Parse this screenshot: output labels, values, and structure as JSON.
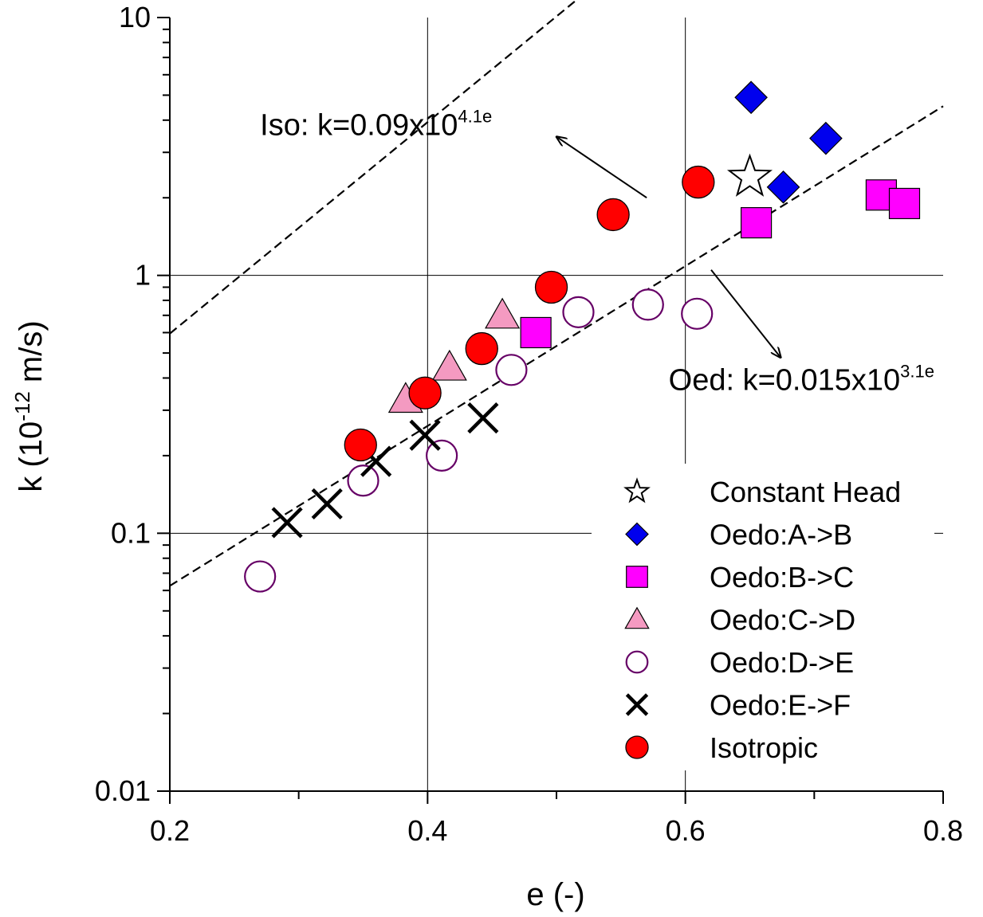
{
  "chart_data": {
    "type": "scatter",
    "title": "",
    "xlabel": "e (-)",
    "ylabel": {
      "base": "k (10",
      "sup": "-12",
      "rest": " m/s)"
    },
    "xlim": [
      0.2,
      0.8
    ],
    "ylim": [
      0.01,
      10
    ],
    "yscale": "log",
    "grid": true,
    "legend_position": "bottom-right",
    "x_ticks": [
      0.2,
      0.4,
      0.6,
      0.8
    ],
    "x_tick_labels": [
      "0.2",
      "0.4",
      "0.6",
      "0.8"
    ],
    "y_ticks": [
      0.01,
      0.1,
      1,
      10
    ],
    "y_tick_labels": [
      "0.01",
      "0.1",
      "1",
      "10"
    ],
    "series": [
      {
        "name": "Constant Head",
        "marker": "star",
        "fill": "#ffffff",
        "stroke": "#000000",
        "points": [
          [
            0.65,
            2.4
          ]
        ]
      },
      {
        "name": "Oedo:A->B",
        "marker": "diamond",
        "fill": "#0000ee",
        "stroke": "#000000",
        "points": [
          [
            0.651,
            4.9
          ],
          [
            0.676,
            2.2
          ],
          [
            0.709,
            3.4
          ]
        ]
      },
      {
        "name": "Oedo:B->C",
        "marker": "square",
        "fill": "#ff00ff",
        "stroke": "#000000",
        "points": [
          [
            0.484,
            0.6
          ],
          [
            0.655,
            1.6
          ],
          [
            0.752,
            2.05
          ],
          [
            0.77,
            1.9
          ]
        ]
      },
      {
        "name": "Oedo:C->D",
        "marker": "triangle",
        "fill": "#f49ac1",
        "stroke": "#000000",
        "points": [
          [
            0.383,
            0.33
          ],
          [
            0.417,
            0.44
          ],
          [
            0.458,
            0.7
          ]
        ]
      },
      {
        "name": "Oedo:D->E",
        "marker": "circle-open",
        "fill": "#ffffff",
        "stroke": "#660066",
        "points": [
          [
            0.27,
            0.068
          ],
          [
            0.35,
            0.16
          ],
          [
            0.411,
            0.2
          ],
          [
            0.465,
            0.43
          ],
          [
            0.517,
            0.72
          ],
          [
            0.571,
            0.77
          ],
          [
            0.609,
            0.71
          ]
        ]
      },
      {
        "name": "Oedo:E->F",
        "marker": "cross",
        "fill": "none",
        "stroke": "#000000",
        "points": [
          [
            0.291,
            0.11
          ],
          [
            0.322,
            0.13
          ],
          [
            0.36,
            0.19
          ],
          [
            0.398,
            0.24
          ],
          [
            0.443,
            0.28
          ]
        ]
      },
      {
        "name": "Isotropic",
        "marker": "circle",
        "fill": "#ff0000",
        "stroke": "#000000",
        "points": [
          [
            0.348,
            0.22
          ],
          [
            0.398,
            0.35
          ],
          [
            0.442,
            0.52
          ],
          [
            0.496,
            0.9
          ],
          [
            0.544,
            1.72
          ],
          [
            0.61,
            2.3
          ]
        ]
      }
    ],
    "fit_lines": [
      {
        "label": "Iso",
        "a": 0.09,
        "b": 4.1,
        "x_range": [
          0.2,
          0.705
        ]
      },
      {
        "label": "Oed",
        "a": 0.015,
        "b": 3.1,
        "x_range": [
          0.2,
          0.8
        ]
      }
    ],
    "annotations": [
      {
        "id": "iso",
        "text": "Iso: k=0.09x10",
        "sup": "4.1e",
        "text_at": [
          0.27,
          3.5
        ],
        "arrow_from": [
          0.57,
          2.0
        ],
        "arrow_to": [
          0.5,
          3.45
        ]
      },
      {
        "id": "oed",
        "text": "Oed: k=0.015x10",
        "sup": "3.1e",
        "text_at": [
          0.587,
          0.36
        ],
        "arrow_from": [
          0.62,
          1.05
        ],
        "arrow_to": [
          0.674,
          0.48
        ]
      }
    ]
  }
}
